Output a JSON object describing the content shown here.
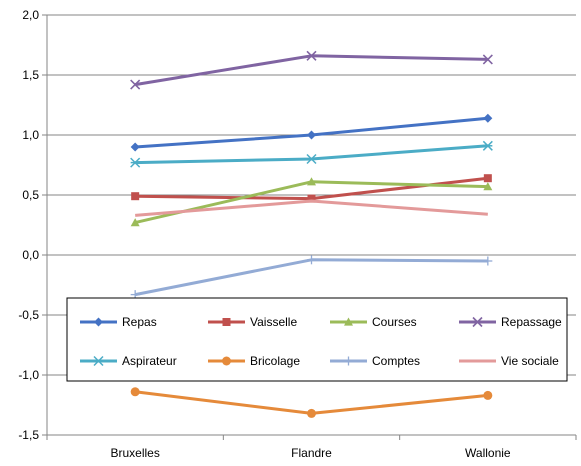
{
  "chart_data": {
    "type": "line",
    "title": "",
    "xlabel": "",
    "ylabel": "",
    "categories": [
      "Bruxelles",
      "Flandre",
      "Wallonie"
    ],
    "ylim": [
      -1.5,
      2.0
    ],
    "yticks": [
      "-1,5",
      "-1,0",
      "-0,5",
      "0,0",
      "0,5",
      "1,0",
      "1,5",
      "2,0"
    ],
    "grid": "horizontal",
    "legend_position": "lower-center, inside plot, 2 rows",
    "series": [
      {
        "name": "Repas",
        "color": "#4472C4",
        "marker": "diamond",
        "values": [
          0.9,
          1.0,
          1.14
        ]
      },
      {
        "name": "Vaisselle",
        "color": "#C0504D",
        "marker": "square",
        "values": [
          0.49,
          0.47,
          0.64
        ]
      },
      {
        "name": "Courses",
        "color": "#9BBB59",
        "marker": "triangle",
        "values": [
          0.27,
          0.61,
          0.57
        ]
      },
      {
        "name": "Repassage",
        "color": "#8064A2",
        "marker": "x",
        "values": [
          1.42,
          1.66,
          1.63
        ]
      },
      {
        "name": "Aspirateur",
        "color": "#4BACC6",
        "marker": "asterisk",
        "values": [
          0.77,
          0.8,
          0.91
        ]
      },
      {
        "name": "Bricolage",
        "color": "#E58A3A",
        "marker": "circle",
        "values": [
          -1.14,
          -1.32,
          -1.17
        ]
      },
      {
        "name": "Comptes",
        "color": "#93ABD5",
        "marker": "plus",
        "values": [
          -0.33,
          -0.04,
          -0.05
        ]
      },
      {
        "name": "Vie sociale",
        "color": "#E39A9A",
        "marker": "none",
        "values": [
          0.33,
          0.45,
          0.34
        ]
      }
    ]
  }
}
